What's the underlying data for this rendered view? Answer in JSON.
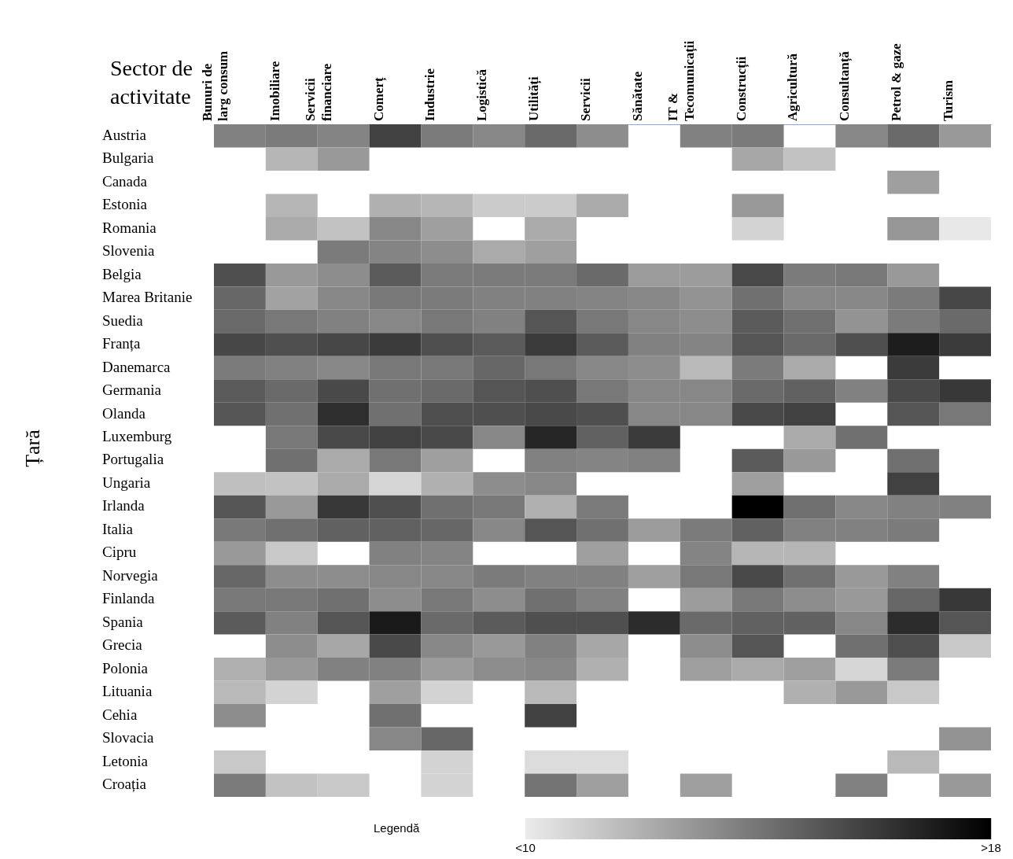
{
  "chart_data": {
    "type": "heatmap",
    "xlabel": "Sector de activitate",
    "ylabel": "Țară",
    "clabel": "Legendă",
    "categories": [
      "Bunuri de larg consum",
      "Imobiliare",
      "Servicii financiare",
      "Comerț",
      "Industrie",
      "Logistică",
      "Utilități",
      "Servicii",
      "Sănătate",
      "IT & Tecomunicații",
      "Construcții",
      "Agricultură",
      "Consultanță",
      "Petrol & gaze",
      "Turism"
    ],
    "y_categories": [
      "Austria",
      "Bulgaria",
      "Canada",
      "Estonia",
      "Romania",
      "Slovenia",
      "Belgia",
      "Marea Britanie",
      "Suedia",
      "Franța",
      "Danemarca",
      "Germania",
      "Olanda",
      "Luxemburg",
      "Portugalia",
      "Ungaria",
      "Irlanda",
      "Italia",
      "Cipru",
      "Norvegia",
      "Finlanda",
      "Spania",
      "Grecia",
      "Polonia",
      "Lituania",
      "Cehia",
      "Slovacia",
      "Letonia",
      "Croația"
    ],
    "cells": [
      [
        13.6,
        13.8,
        13.5,
        15.8,
        13.8,
        13.4,
        14.4,
        13.2,
        null,
        13.6,
        13.8,
        null,
        13.4,
        14.4,
        12.8
      ],
      [
        null,
        11.8,
        12.8,
        null,
        null,
        null,
        null,
        null,
        null,
        null,
        12.3,
        11.4,
        null,
        null,
        null
      ],
      [
        null,
        null,
        null,
        null,
        null,
        null,
        null,
        null,
        null,
        null,
        null,
        null,
        null,
        12.6,
        null
      ],
      [
        null,
        11.8,
        null,
        12.0,
        11.8,
        11.1,
        11.1,
        12.2,
        null,
        null,
        12.8,
        null,
        null,
        null,
        null
      ],
      [
        null,
        12.2,
        11.4,
        13.4,
        12.6,
        null,
        12.2,
        null,
        null,
        null,
        10.8,
        null,
        null,
        12.9,
        10.1
      ],
      [
        null,
        null,
        13.8,
        13.5,
        13.2,
        12.2,
        12.6,
        null,
        null,
        null,
        null,
        null,
        null,
        null,
        null
      ],
      [
        15.3,
        12.8,
        13.2,
        14.9,
        13.8,
        13.8,
        13.8,
        14.4,
        12.7,
        12.7,
        15.5,
        13.8,
        13.9,
        12.8,
        null
      ],
      [
        14.5,
        12.5,
        13.4,
        13.9,
        13.8,
        13.6,
        13.6,
        13.5,
        13.4,
        13.0,
        14.2,
        13.4,
        13.4,
        13.8,
        15.6
      ],
      [
        14.4,
        13.9,
        13.6,
        13.4,
        13.9,
        13.6,
        15.1,
        13.9,
        13.4,
        13.2,
        14.9,
        14.2,
        13.0,
        13.8,
        14.4
      ],
      [
        15.6,
        15.3,
        15.6,
        16.0,
        15.3,
        14.9,
        16.0,
        14.9,
        13.6,
        13.5,
        15.1,
        14.4,
        15.3,
        17.0,
        16.0
      ],
      [
        13.8,
        13.6,
        13.4,
        13.9,
        13.9,
        14.5,
        13.9,
        13.4,
        13.2,
        11.7,
        13.8,
        12.2,
        null,
        16.0,
        null
      ],
      [
        14.9,
        14.4,
        15.5,
        14.2,
        14.4,
        15.1,
        15.3,
        13.9,
        13.4,
        13.4,
        14.4,
        14.7,
        13.6,
        15.5,
        16.1
      ],
      [
        15.1,
        14.2,
        16.4,
        14.2,
        15.3,
        15.3,
        15.5,
        15.3,
        13.4,
        13.4,
        15.5,
        15.8,
        null,
        15.1,
        13.9
      ],
      [
        null,
        13.9,
        15.5,
        15.8,
        15.5,
        13.4,
        16.7,
        14.7,
        16.0,
        null,
        null,
        12.2,
        14.2,
        null,
        null
      ],
      [
        null,
        14.2,
        12.2,
        13.9,
        12.6,
        null,
        13.6,
        13.5,
        13.6,
        null,
        14.9,
        12.8,
        null,
        14.2,
        null
      ],
      [
        11.5,
        11.4,
        12.2,
        10.7,
        12.0,
        13.2,
        13.4,
        null,
        null,
        null,
        12.6,
        null,
        null,
        15.8,
        null
      ],
      [
        15.1,
        12.8,
        16.1,
        15.3,
        14.2,
        13.9,
        12.0,
        13.8,
        null,
        null,
        18.0,
        14.2,
        13.4,
        13.6,
        13.6
      ],
      [
        13.9,
        14.2,
        14.7,
        14.7,
        14.5,
        13.4,
        15.1,
        14.2,
        12.7,
        13.8,
        14.7,
        13.6,
        13.6,
        13.8,
        null
      ],
      [
        12.8,
        11.2,
        null,
        13.6,
        13.5,
        null,
        null,
        12.6,
        null,
        13.5,
        11.8,
        11.8,
        null,
        null,
        null
      ],
      [
        14.5,
        13.2,
        13.2,
        13.4,
        13.4,
        13.8,
        13.6,
        13.6,
        12.6,
        13.9,
        15.5,
        14.2,
        12.8,
        13.6,
        null
      ],
      [
        13.9,
        13.9,
        14.2,
        13.2,
        13.9,
        13.2,
        14.2,
        13.6,
        null,
        12.7,
        13.9,
        13.2,
        12.8,
        14.5,
        16.1
      ],
      [
        14.9,
        13.6,
        15.1,
        17.1,
        14.4,
        14.9,
        15.3,
        15.3,
        16.5,
        14.4,
        14.7,
        14.7,
        13.4,
        16.5,
        15.1
      ],
      [
        null,
        13.2,
        12.3,
        15.5,
        13.4,
        12.8,
        13.6,
        12.3,
        null,
        13.2,
        15.1,
        null,
        14.2,
        15.3,
        11.2
      ],
      [
        12.0,
        12.8,
        13.6,
        13.6,
        12.7,
        13.2,
        13.4,
        12.0,
        null,
        12.6,
        12.2,
        12.6,
        10.7,
        13.8,
        null
      ],
      [
        11.7,
        10.8,
        null,
        12.6,
        10.8,
        null,
        11.7,
        null,
        null,
        null,
        null,
        12.0,
        12.8,
        11.2,
        null
      ],
      [
        13.2,
        null,
        null,
        14.2,
        null,
        null,
        15.8,
        null,
        null,
        null,
        null,
        null,
        null,
        null,
        null
      ],
      [
        null,
        null,
        null,
        13.4,
        14.5,
        null,
        null,
        null,
        null,
        null,
        null,
        null,
        null,
        null,
        13.0
      ],
      [
        11.2,
        null,
        null,
        null,
        10.8,
        null,
        10.5,
        10.5,
        null,
        null,
        null,
        null,
        null,
        11.7,
        null
      ],
      [
        13.8,
        11.4,
        11.2,
        null,
        10.8,
        null,
        14.1,
        12.6,
        null,
        12.6,
        null,
        null,
        13.6,
        null,
        12.8
      ]
    ],
    "clim": [
      10,
      18
    ],
    "cticks": [
      {
        "value": 10,
        "label": "<10"
      },
      {
        "value": 18,
        "label": ">18"
      }
    ]
  }
}
